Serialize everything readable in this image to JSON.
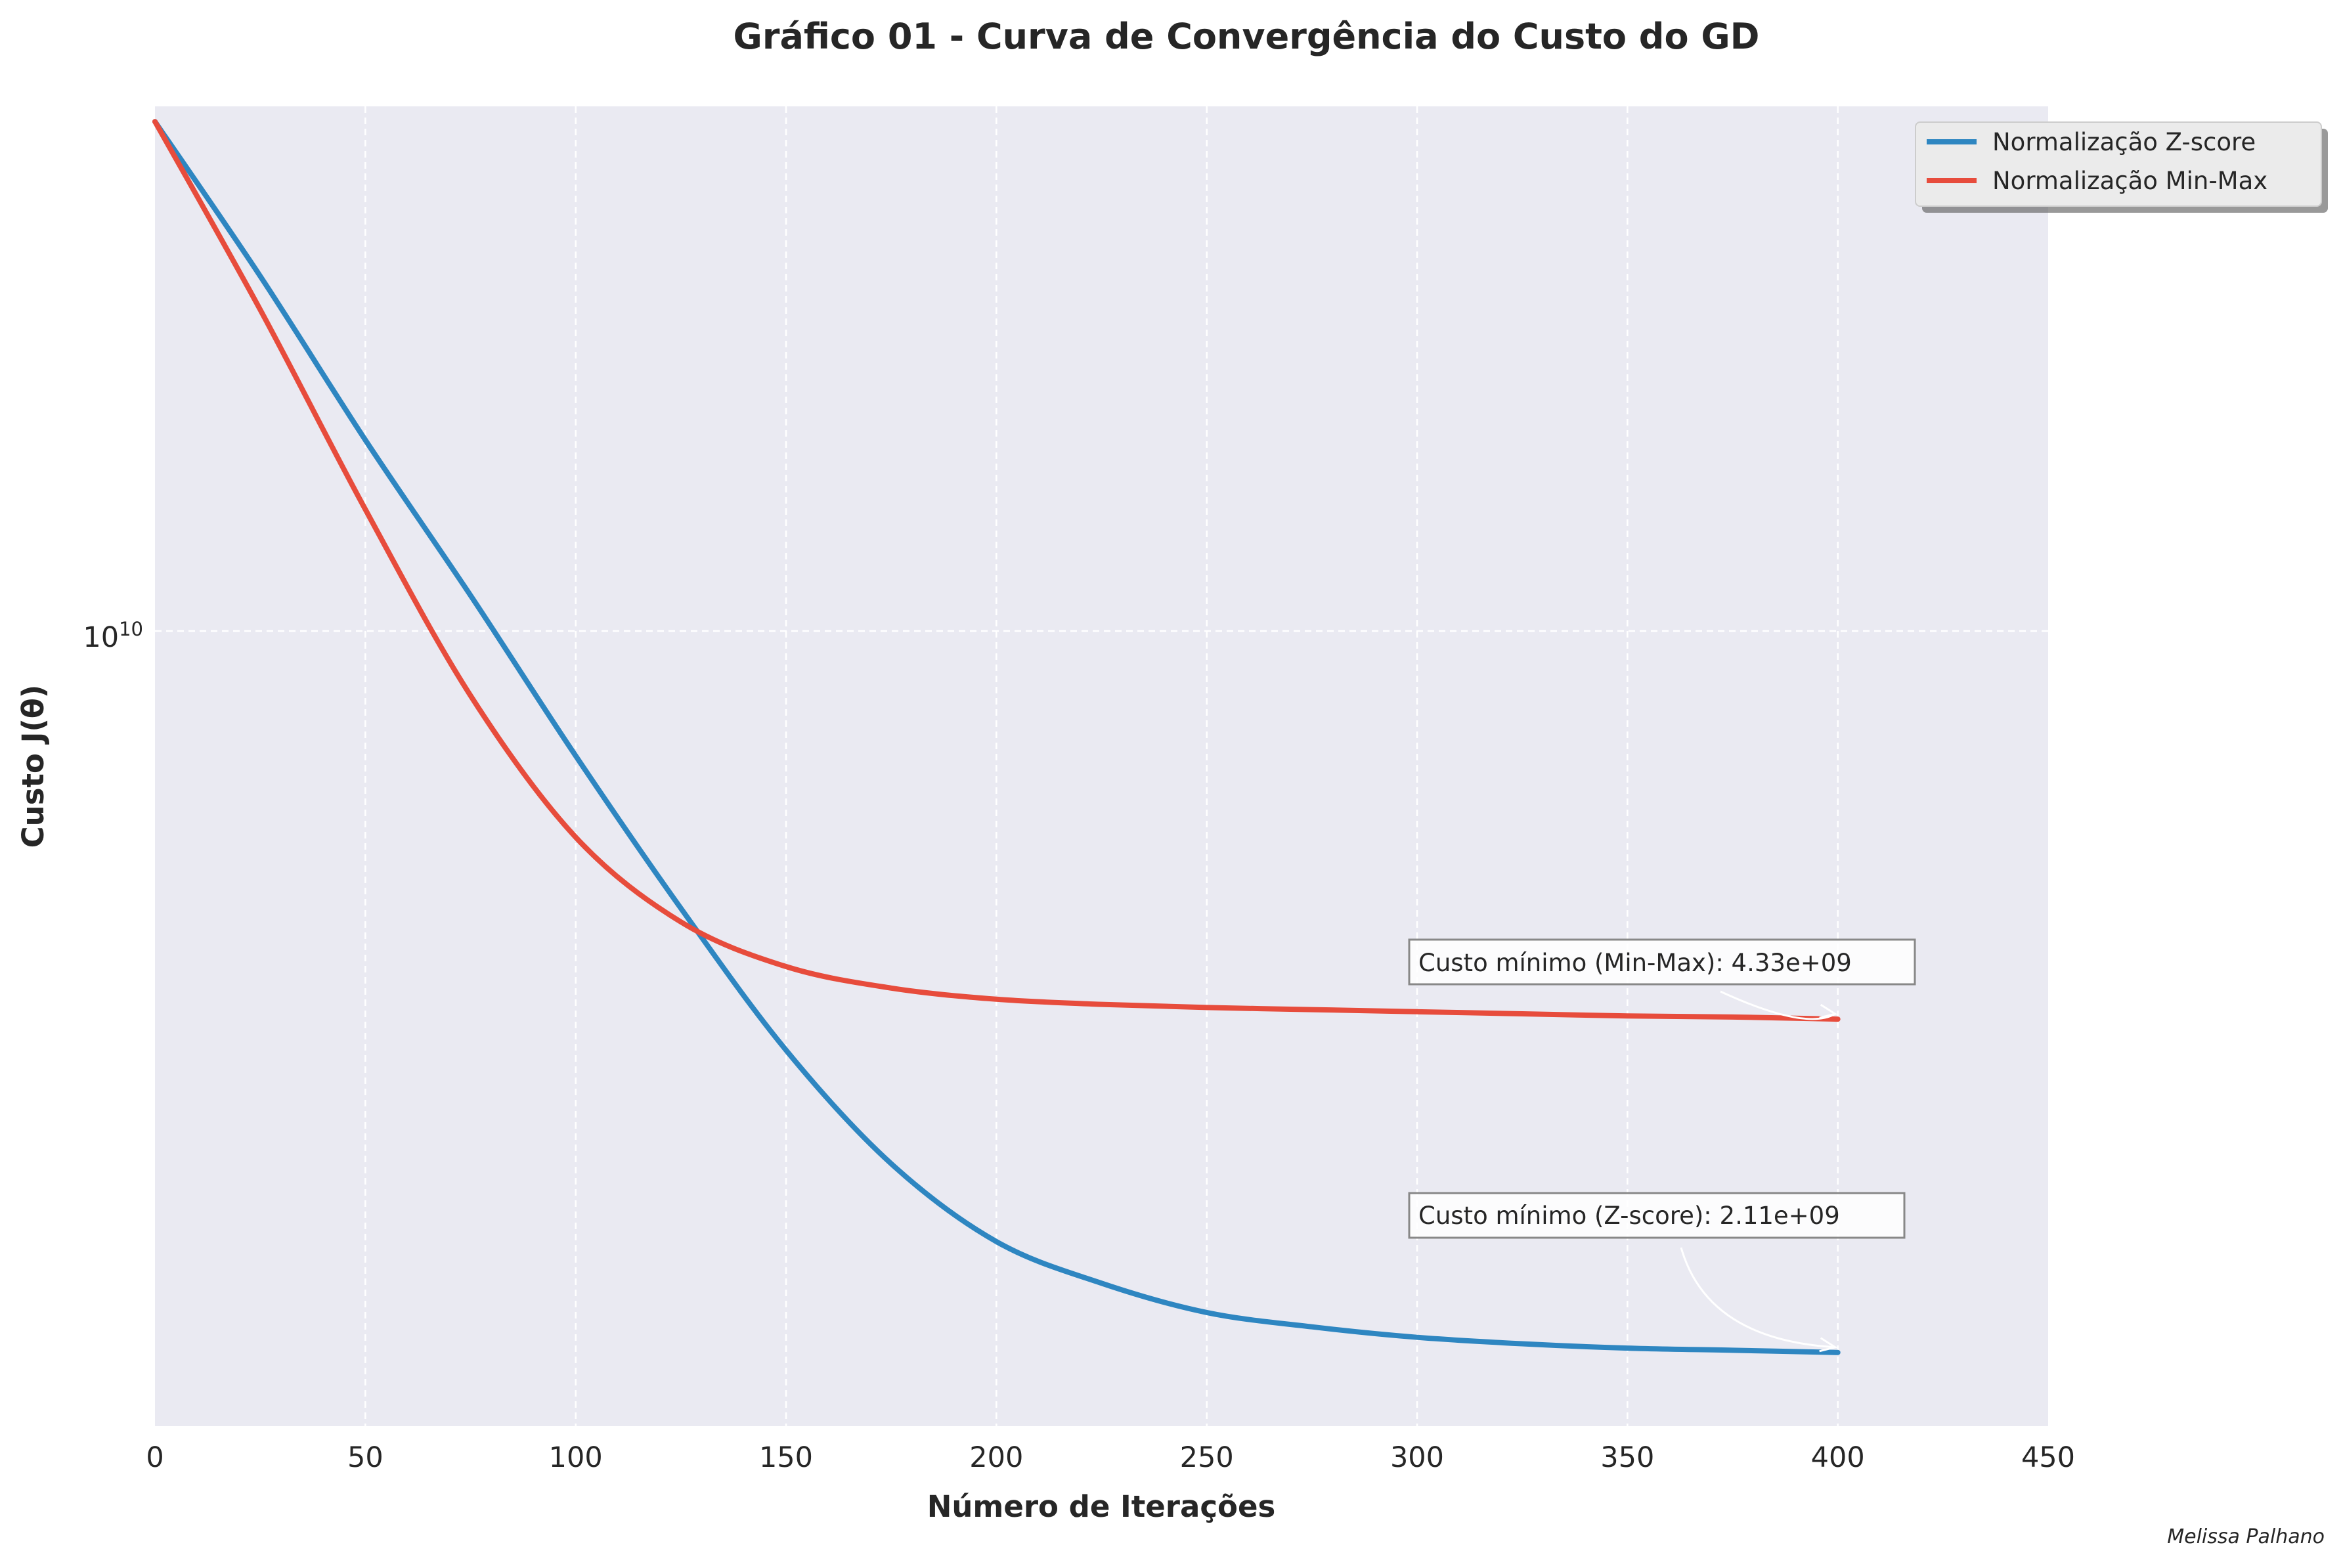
{
  "chart_data": {
    "type": "line",
    "title": "Gráfico 01 - Curva de Convergência do Custo do GD",
    "xlabel": "Número de Iterações",
    "ylabel": "Custo J(θ)",
    "yscale": "log",
    "xlim": [
      0,
      450
    ],
    "ylim": [
      1800000000,
      31000000000
    ],
    "x_ticks": [
      {
        "value": 0,
        "label": "0"
      },
      {
        "value": 50,
        "label": "50"
      },
      {
        "value": 100,
        "label": "100"
      },
      {
        "value": 150,
        "label": "150"
      },
      {
        "value": 200,
        "label": "200"
      },
      {
        "value": 250,
        "label": "250"
      },
      {
        "value": 300,
        "label": "300"
      },
      {
        "value": 350,
        "label": "350"
      },
      {
        "value": 400,
        "label": "400"
      },
      {
        "value": 450,
        "label": "450"
      }
    ],
    "y_ticks": [
      {
        "value": 10000000000,
        "base": "10",
        "exp": "10"
      }
    ],
    "grid": true,
    "background": "#eaeaf2",
    "legend_position": "upper-right",
    "series": [
      {
        "name": "Normalização Z-score",
        "color": "#2e86c1",
        "x": [
          0,
          25,
          50,
          75,
          100,
          125,
          150,
          175,
          200,
          225,
          250,
          275,
          300,
          325,
          350,
          375,
          400
        ],
        "y": [
          30000000000,
          21500000000,
          15100000000,
          10800000000,
          7640000000,
          5500000000,
          4050000000,
          3170000000,
          2680000000,
          2450000000,
          2300000000,
          2230000000,
          2180000000,
          2150000000,
          2130000000,
          2120000000,
          2110000000
        ]
      },
      {
        "name": "Normalização Min-Max",
        "color": "#e74c3c",
        "x": [
          0,
          25,
          50,
          75,
          100,
          125,
          150,
          175,
          200,
          225,
          250,
          275,
          300,
          325,
          350,
          375,
          400
        ],
        "y": [
          30000000000,
          20000000000,
          13000000000,
          8700000000,
          6410000000,
          5340000000,
          4850000000,
          4630000000,
          4520000000,
          4470000000,
          4440000000,
          4420000000,
          4400000000,
          4380000000,
          4360000000,
          4350000000,
          4330000000
        ]
      }
    ],
    "annotations": [
      {
        "text": "Custo mínimo (Min-Max): 4.33e+09",
        "x": 400,
        "y": 4330000000
      },
      {
        "text": "Custo mínimo (Z-score): 2.11e+09",
        "x": 400,
        "y": 2110000000
      }
    ],
    "credit": "Melissa Palhano"
  }
}
